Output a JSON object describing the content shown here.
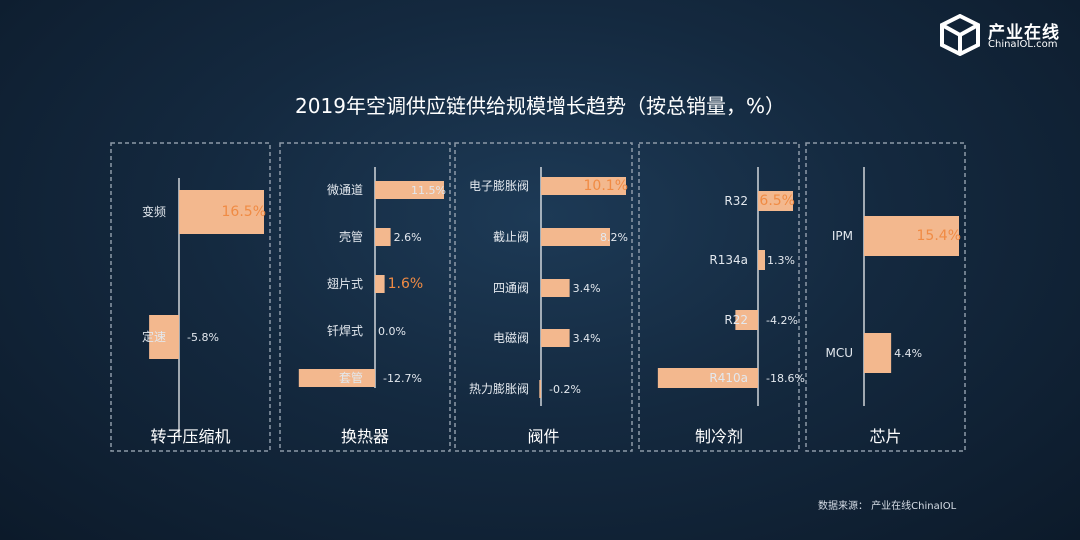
{
  "logo": {
    "brand": "产业在线",
    "sub": "ChinaIOL.com",
    "icon": "cube-logo-icon"
  },
  "title": "2019年空调供应链供给规模增长趋势（按总销量，%）",
  "source": "数据来源：  产业在线ChinaIOL",
  "colors": {
    "bar": "#f3b88e",
    "highlight": "#f08b44",
    "text": "#ffffff",
    "muted": "#e3e8ee"
  },
  "chart_data": [
    {
      "type": "bar",
      "orientation": "horizontal",
      "title": "转子压缩机",
      "categories": [
        "变频",
        "定速"
      ],
      "values": [
        16.5,
        -5.8
      ],
      "labels": [
        "16.5%",
        "-5.8%"
      ],
      "highlight": [
        0
      ]
    },
    {
      "type": "bar",
      "orientation": "horizontal",
      "title": "换热器",
      "categories": [
        "微通道",
        "壳管",
        "翅片式",
        "钎焊式",
        "套管"
      ],
      "values": [
        11.5,
        2.6,
        1.6,
        0.0,
        -12.7
      ],
      "labels": [
        "11.5%",
        "2.6%",
        "1.6%",
        "0.0%",
        "-12.7%"
      ],
      "highlight": [
        2
      ]
    },
    {
      "type": "bar",
      "orientation": "horizontal",
      "title": "阀件",
      "categories": [
        "电子膨胀阀",
        "截止阀",
        "四通阀",
        "电磁阀",
        "热力膨胀阀"
      ],
      "values": [
        10.1,
        8.2,
        3.4,
        3.4,
        -0.2
      ],
      "labels": [
        "10.1%",
        "8.2%",
        "3.4%",
        "3.4%",
        "-0.2%"
      ],
      "highlight": [
        0
      ]
    },
    {
      "type": "bar",
      "orientation": "horizontal",
      "title": "制冷剂",
      "categories": [
        "R32",
        "R134a",
        "R22",
        "R410a"
      ],
      "values": [
        6.5,
        1.3,
        -4.2,
        -18.6
      ],
      "labels": [
        "6.5%",
        "1.3%",
        "-4.2%",
        "-18.6%"
      ],
      "highlight": [
        0
      ]
    },
    {
      "type": "bar",
      "orientation": "horizontal",
      "title": "芯片",
      "categories": [
        "IPM",
        "MCU"
      ],
      "values": [
        15.4,
        4.4
      ],
      "labels": [
        "15.4%",
        "4.4%"
      ],
      "highlight": [
        0
      ]
    }
  ]
}
